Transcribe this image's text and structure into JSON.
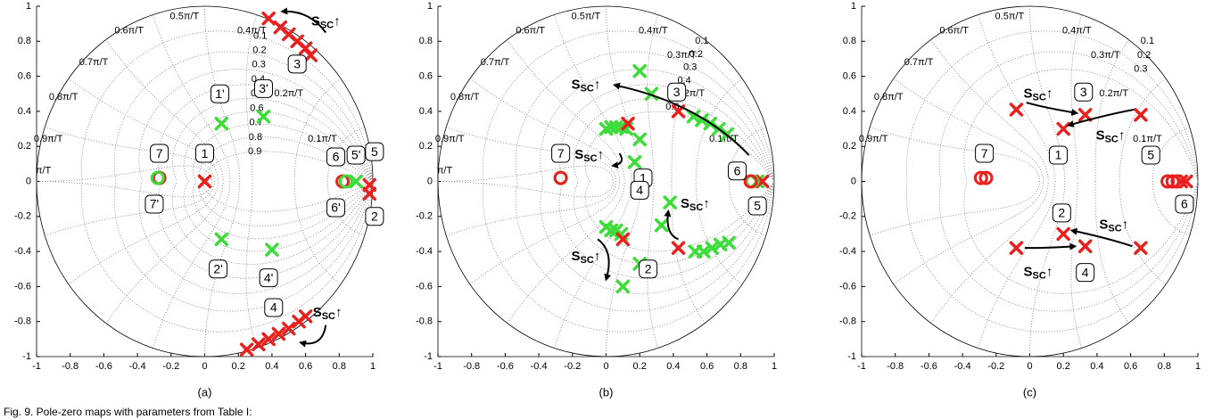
{
  "chart_data": [
    {
      "type": "scatter",
      "subcaption": "(a)",
      "xlim": [
        -1,
        1
      ],
      "ylim": [
        -1,
        1
      ],
      "xticks": [
        -1,
        -0.8,
        -0.6,
        -0.4,
        -0.2,
        0,
        0.2,
        0.4,
        0.6,
        0.8,
        1
      ],
      "yticks": [
        -1,
        -0.8,
        -0.6,
        -0.4,
        -0.2,
        0,
        0.2,
        0.4,
        0.6,
        0.8,
        1
      ],
      "damping": [
        0.1,
        0.2,
        0.3,
        0.4,
        0.5,
        0.6,
        0.7,
        0.8,
        0.9
      ],
      "frequencies": [
        {
          "value": 0.1,
          "label": "0.1π/T"
        },
        {
          "value": 0.2,
          "label": "0.2π/T"
        },
        {
          "value": 0.4,
          "label": "0.4π/T"
        },
        {
          "value": 0.5,
          "label": "0.5π/T"
        },
        {
          "value": 0.6,
          "label": "0.6π/T"
        },
        {
          "value": 0.7,
          "label": "0.7π/T"
        },
        {
          "value": 0.8,
          "label": "0.8π/T"
        },
        {
          "value": 0.9,
          "label": "0.9π/T"
        },
        {
          "value": 1,
          "label": "π/T"
        }
      ],
      "series": [
        {
          "marker": "x",
          "color": "#e8211f",
          "x": [
            0,
            0.38,
            0.45,
            0.5,
            0.55,
            0.6,
            0.63,
            0.25,
            0.32,
            0.38,
            0.44,
            0.5,
            0.56,
            0.6,
            0.98,
            0.98
          ],
          "values": [
            0,
            0.93,
            0.88,
            0.84,
            0.8,
            0.76,
            0.72,
            -0.96,
            -0.93,
            -0.9,
            -0.87,
            -0.84,
            -0.8,
            -0.77,
            -0.02,
            -0.07
          ]
        },
        {
          "marker": "o",
          "color": "#e8211f",
          "x": [
            -0.27,
            0.82
          ],
          "values": [
            0.02,
            0
          ]
        },
        {
          "marker": "x",
          "color": "#3ddc3a",
          "x": [
            0.1,
            0.35,
            0.1,
            0.4,
            0.9
          ],
          "values": [
            0.33,
            0.37,
            -0.33,
            -0.39,
            0
          ]
        },
        {
          "marker": "o",
          "color": "#3ddc3a",
          "x": [
            -0.28,
            0.84
          ],
          "values": [
            0.02,
            0
          ]
        }
      ],
      "labels": [
        "7",
        "7'",
        "1",
        "1'",
        "3'",
        "3",
        "6",
        "6'",
        "5'",
        "5",
        "2",
        "2'",
        "4'",
        "4"
      ],
      "annotations": [
        {
          "main": "S",
          "sub": "SC",
          "tail": "↑"
        },
        {
          "main": "S",
          "sub": "SC",
          "tail": "↑"
        }
      ]
    },
    {
      "type": "scatter",
      "subcaption": "(b)",
      "xlim": [
        -1,
        1
      ],
      "ylim": [
        -1,
        1
      ],
      "xticks": [
        -1,
        -0.8,
        -0.6,
        -0.4,
        -0.2,
        0,
        0.2,
        0.4,
        0.6,
        0.8,
        1
      ],
      "yticks": [
        -1,
        -0.8,
        -0.6,
        -0.4,
        -0.2,
        0,
        0.2,
        0.4,
        0.6,
        0.8,
        1
      ],
      "damping": [
        0.1,
        0.2,
        0.3,
        0.4,
        0.5,
        0.6
      ],
      "frequencies": [
        {
          "value": 0.1,
          "label": "0.1π/T"
        },
        {
          "value": 0.2,
          "label": "0.2π/T"
        },
        {
          "value": 0.3,
          "label": "0.3π/T"
        },
        {
          "value": 0.4,
          "label": "0.4π/T"
        },
        {
          "value": 0.5,
          "label": "0.5π/T"
        },
        {
          "value": 0.6,
          "label": "0.6π/T"
        },
        {
          "value": 0.7,
          "label": "0.7π/T"
        },
        {
          "value": 0.8,
          "label": "0.8π/T"
        },
        {
          "value": 0.9,
          "label": "0.9π/T"
        },
        {
          "value": 1,
          "label": "π/T"
        }
      ],
      "series": [
        {
          "marker": "x",
          "color": "#3ddc3a",
          "x": [
            0,
            0.03,
            0.06,
            0.09,
            0.12,
            0.2,
            0.17,
            0.2,
            0.27,
            0.52,
            0.57,
            0.62,
            0.67,
            0.72,
            0,
            0.03,
            0.06,
            0.09,
            0.2,
            0.1,
            0.38,
            0.33,
            0.53,
            0.58,
            0.63,
            0.68,
            0.73,
            0.9
          ],
          "values": [
            0.3,
            0.31,
            0.31,
            0.31,
            0.3,
            0.24,
            0.11,
            0.63,
            0.5,
            0.37,
            0.35,
            0.33,
            0.3,
            0.27,
            -0.26,
            -0.28,
            -0.28,
            -0.3,
            -0.47,
            -0.6,
            -0.12,
            -0.25,
            -0.4,
            -0.4,
            -0.38,
            -0.36,
            -0.35,
            0
          ]
        },
        {
          "marker": "x",
          "color": "#e8211f",
          "x": [
            0.13,
            0.43,
            0.1,
            0.43,
            0.93
          ],
          "values": [
            0.33,
            0.4,
            -0.33,
            -0.38,
            0
          ]
        },
        {
          "marker": "o",
          "color": "#3ddc3a",
          "x": [
            -0.27,
            0.87
          ],
          "values": [
            0.02,
            0
          ]
        },
        {
          "marker": "o",
          "color": "#e8211f",
          "x": [
            -0.27,
            0.86
          ],
          "values": [
            0.02,
            0
          ]
        }
      ],
      "labels": [
        "3",
        "1",
        "7",
        "6",
        "5",
        "4",
        "2"
      ],
      "annotations": [
        {
          "main": "S",
          "sub": "SC",
          "tail": "↑"
        },
        {
          "main": "S",
          "sub": "SC",
          "tail": "↑"
        },
        {
          "main": "S",
          "sub": "SC",
          "tail": "↑"
        },
        {
          "main": "S",
          "sub": "SC",
          "tail": "↑"
        }
      ]
    },
    {
      "type": "scatter",
      "subcaption": "(c)",
      "xlim": [
        -1,
        1
      ],
      "ylim": [
        -1,
        1
      ],
      "xticks": [
        -1,
        -0.8,
        -0.6,
        -0.4,
        -0.2,
        0,
        0.2,
        0.4,
        0.6,
        0.8,
        1
      ],
      "yticks": [
        -1,
        -0.8,
        -0.6,
        -0.4,
        -0.2,
        0,
        0.2,
        0.4,
        0.6,
        0.8,
        1
      ],
      "damping": [
        0.1,
        0.2,
        0.3
      ],
      "frequencies": [
        {
          "value": 0.1,
          "label": "0.1π/T"
        },
        {
          "value": 0.2,
          "label": "0.2π/T"
        },
        {
          "value": 0.3,
          "label": "0.3π/T"
        },
        {
          "value": 0.4,
          "label": "0.4π/T"
        },
        {
          "value": 0.5,
          "label": "0.5π/T"
        },
        {
          "value": 0.6,
          "label": "0.6π/T"
        },
        {
          "value": 0.7,
          "label": "0.7π/T"
        },
        {
          "value": 0.8,
          "label": "0.8π/T"
        },
        {
          "value": 0.9,
          "label": "0.9π/T"
        }
      ],
      "series": [
        {
          "marker": "x",
          "color": "#e8211f",
          "x": [
            -0.08,
            0.2,
            0.33,
            0.66,
            -0.08,
            0.2,
            0.33,
            0.66,
            0.9,
            0.93
          ],
          "values": [
            0.41,
            0.3,
            0.38,
            0.38,
            -0.38,
            -0.3,
            -0.37,
            -0.38,
            0,
            0
          ]
        },
        {
          "marker": "o",
          "color": "#e8211f",
          "x": [
            -0.29,
            -0.26,
            0.82,
            0.85,
            0.88
          ],
          "values": [
            0.02,
            0.02,
            0,
            0,
            0
          ]
        }
      ],
      "labels": [
        "3",
        "1",
        "7",
        "5",
        "6",
        "2",
        "4"
      ],
      "annotations": [
        {
          "main": "S",
          "sub": "SC",
          "tail": "↑"
        },
        {
          "main": "S",
          "sub": "SC",
          "tail": "↑"
        },
        {
          "main": "S",
          "sub": "SC",
          "tail": "↑"
        },
        {
          "main": "S",
          "sub": "SC",
          "tail": "↑"
        }
      ]
    }
  ],
  "caption": "Fig. 9.   Pole-zero maps with parameters from Table I:"
}
